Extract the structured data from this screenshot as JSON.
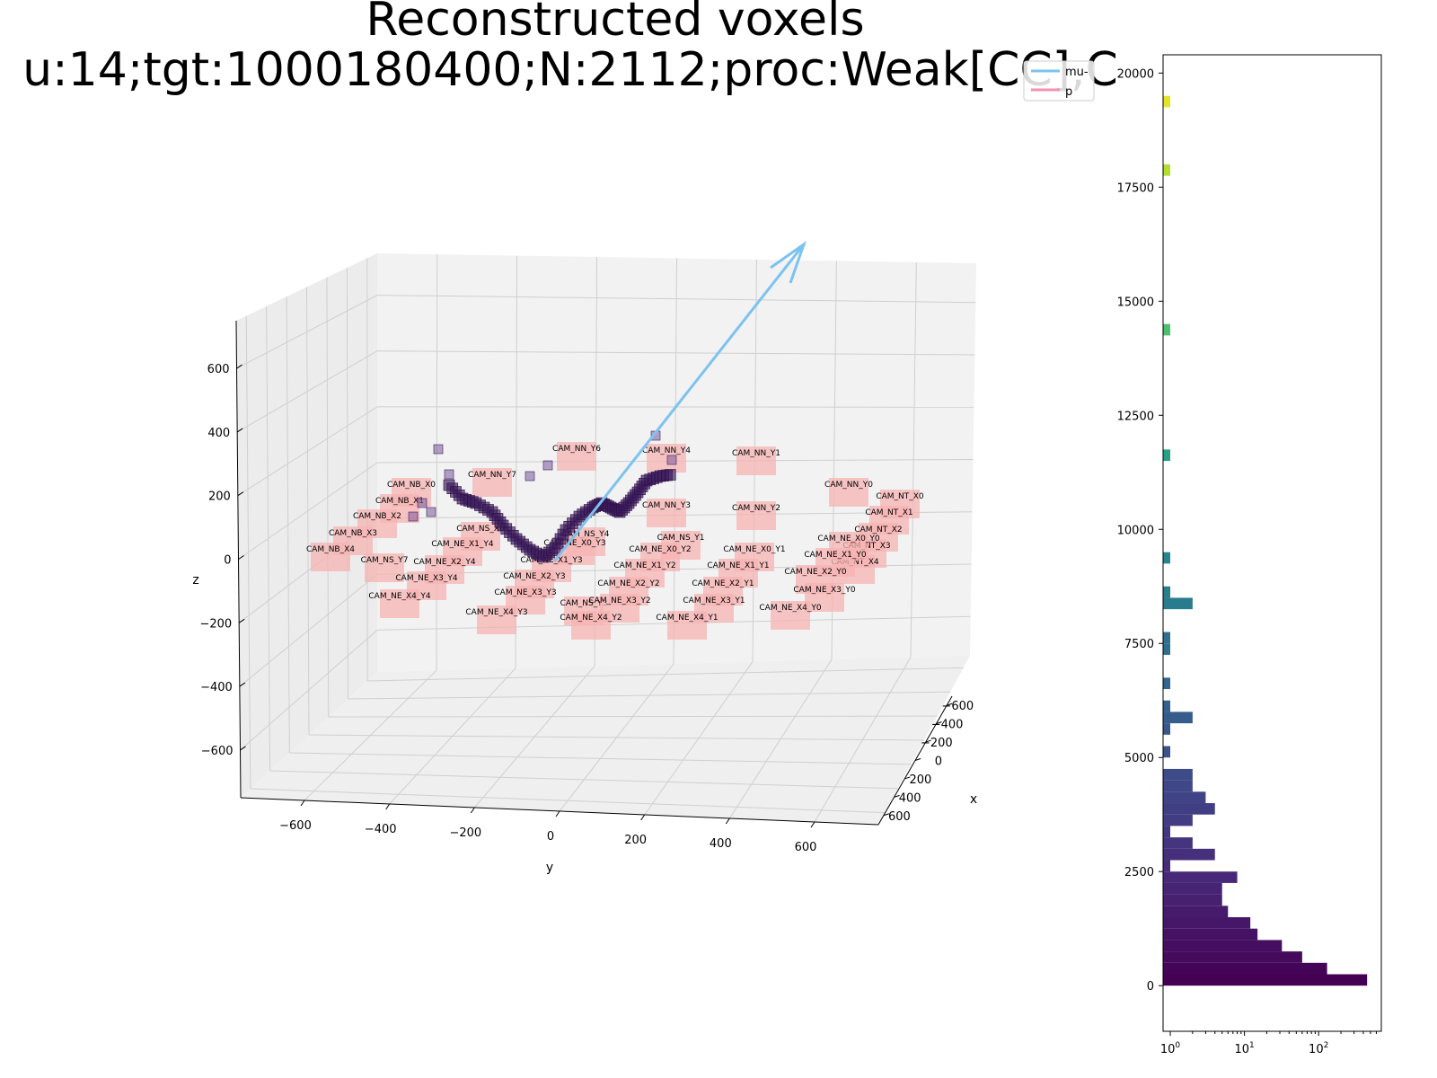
{
  "title": {
    "line1": "Reconstructed voxels",
    "line2": "u:14;tgt:1000180400;N:2112;proc:Weak[CC],C"
  },
  "legend": {
    "position": "top-right",
    "entries": [
      {
        "label": "mu-",
        "color": "#7cc3ef"
      },
      {
        "label": "p",
        "color": "#f48fb1"
      }
    ]
  },
  "colors": {
    "panel_fill": "#f2f2f2",
    "grid": "#cfcfcf",
    "camera_fill": "#f7b3b3",
    "voxel": "#3b1a5a",
    "track_mu": "#7cc3ef"
  },
  "chart_data": [
    {
      "type": "scatter3d",
      "xlabel": "x",
      "ylabel": "y",
      "zlabel": "z",
      "xlim": [
        -700,
        700
      ],
      "ylim": [
        -750,
        750
      ],
      "zlim": [
        -750,
        750
      ],
      "x_ticks": [
        -600,
        -400,
        -200,
        0,
        200,
        400,
        600
      ],
      "y_ticks": [
        -600,
        -400,
        -200,
        0,
        200,
        400,
        600
      ],
      "z_ticks": [
        -600,
        -400,
        -200,
        0,
        200,
        400,
        600
      ],
      "grid": true,
      "cameras": [
        "CAM_NB_X0",
        "CAM_NB_X1",
        "CAM_NB_X2",
        "CAM_NB_X3",
        "CAM_NB_X4",
        "CAM_NN_Y7",
        "CAM_NN_Y6",
        "CAM_NN_Y4",
        "CAM_NN_Y1",
        "CAM_NN_Y0",
        "CAM_NN_Y3",
        "CAM_NN_Y2",
        "CAM_NT_X0",
        "CAM_NT_X1",
        "CAM_NT_X2",
        "CAM_NT_X3",
        "CAM_NT_X4",
        "CAM_NS_X0",
        "CAM_NS_Y4",
        "CAM_NS_Y7",
        "CAM_NS_Y1",
        "CAM_NS_Y3",
        "CAM_NE_X1_Y4",
        "CAM_NE_X0_Y3",
        "CAM_NE_X1_Y3",
        "CAM_NE_X0_Y2",
        "CAM_NE_X0_Y1",
        "CAM_NE_X0_Y0",
        "CAM_NE_X1_Y0",
        "CAM_NE_X2_Y4",
        "CAM_NE_X3_Y4",
        "CAM_NE_X2_Y3",
        "CAM_NE_X1_Y2",
        "CAM_NE_X1_Y1",
        "CAM_NE_X2_Y2",
        "CAM_NE_X2_Y1",
        "CAM_NE_X2_Y0",
        "CAM_NE_X4_Y4",
        "CAM_NE_X3_Y3",
        "CAM_NE_X3_Y2",
        "CAM_NE_X3_Y1",
        "CAM_NE_X3_Y0",
        "CAM_NE_X4_Y3",
        "CAM_NE_X4_Y2",
        "CAM_NE_X4_Y1",
        "CAM_NE_X4_Y0"
      ]
    },
    {
      "type": "bar",
      "orientation": "horizontal",
      "x_scale": "log",
      "xlim": [
        0.8,
        700
      ],
      "ylim": [
        -1000,
        20400
      ],
      "y_ticks": [
        0,
        2500,
        5000,
        7500,
        10000,
        12500,
        15000,
        17500,
        20000
      ],
      "x_ticks": [
        "10^0",
        "10^1",
        "10^2"
      ],
      "bin_width": 250,
      "bins": [
        {
          "y": 0,
          "count": 450
        },
        {
          "y": 250,
          "count": 130
        },
        {
          "y": 500,
          "count": 60
        },
        {
          "y": 750,
          "count": 32
        },
        {
          "y": 1000,
          "count": 15
        },
        {
          "y": 1250,
          "count": 12
        },
        {
          "y": 1500,
          "count": 6
        },
        {
          "y": 1750,
          "count": 5
        },
        {
          "y": 2000,
          "count": 5
        },
        {
          "y": 2250,
          "count": 8
        },
        {
          "y": 2500,
          "count": 1
        },
        {
          "y": 2750,
          "count": 4
        },
        {
          "y": 3000,
          "count": 2
        },
        {
          "y": 3250,
          "count": 1
        },
        {
          "y": 3500,
          "count": 2
        },
        {
          "y": 3750,
          "count": 4
        },
        {
          "y": 4000,
          "count": 3
        },
        {
          "y": 4250,
          "count": 2
        },
        {
          "y": 4500,
          "count": 2
        },
        {
          "y": 5000,
          "count": 1
        },
        {
          "y": 5500,
          "count": 1
        },
        {
          "y": 5750,
          "count": 2
        },
        {
          "y": 6000,
          "count": 1
        },
        {
          "y": 6500,
          "count": 1
        },
        {
          "y": 7250,
          "count": 1
        },
        {
          "y": 7500,
          "count": 1
        },
        {
          "y": 8250,
          "count": 2
        },
        {
          "y": 8500,
          "count": 1
        },
        {
          "y": 9250,
          "count": 1
        },
        {
          "y": 11500,
          "count": 1
        },
        {
          "y": 14250,
          "count": 1
        },
        {
          "y": 17750,
          "count": 1
        },
        {
          "y": 19250,
          "count": 1
        }
      ]
    }
  ]
}
